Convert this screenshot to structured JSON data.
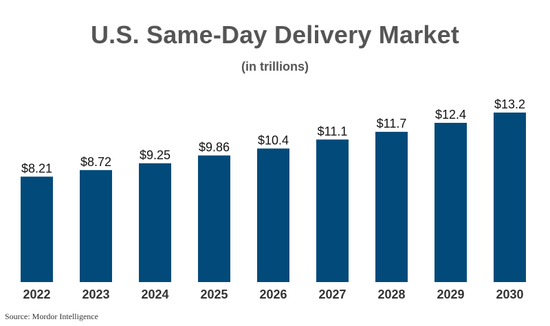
{
  "chart_data": {
    "type": "bar",
    "title": "U.S. Same-Day Delivery Market",
    "subtitle": "(in trillions)",
    "xlabel": "",
    "ylabel": "",
    "categories": [
      "2022",
      "2023",
      "2024",
      "2025",
      "2026",
      "2027",
      "2028",
      "2029",
      "2030"
    ],
    "values": [
      8.21,
      8.72,
      9.25,
      9.86,
      10.4,
      11.1,
      11.7,
      12.4,
      13.2
    ],
    "data_labels": [
      "$8.21",
      "$8.72",
      "$9.25",
      "$9.86",
      "$10.4",
      "$11.1",
      "$11.7",
      "$12.4",
      "$13.2"
    ],
    "ylim": [
      0,
      13.2
    ],
    "grid": false,
    "legend": "none",
    "bar_color": "#024A7A"
  },
  "source": "Source: Mordor Intelligence"
}
